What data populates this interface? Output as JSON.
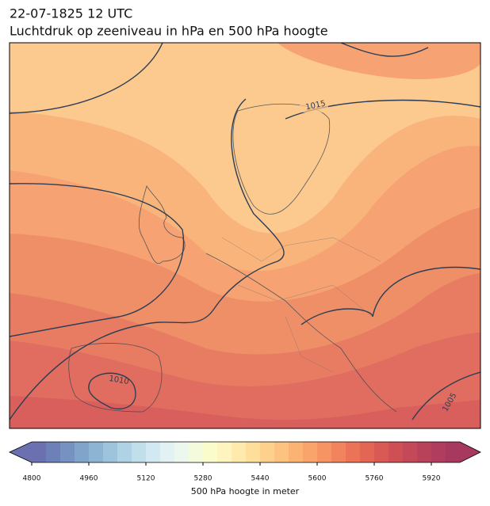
{
  "header": {
    "title_line1": "22-07-1825 12 UTC",
    "title_line2": "Luchtdruk op zeeniveau in hPa en 500 hPa hoogte"
  },
  "map": {
    "contour_labels": [
      "1015",
      "1010",
      "1005"
    ]
  },
  "colorbar": {
    "label": "500 hPa hoogte in meter",
    "lim": [
      4800,
      6000
    ],
    "ticks": [
      4800,
      4960,
      5120,
      5280,
      5440,
      5600,
      5760,
      5920
    ],
    "colors": [
      "#6a70b0",
      "#6d80b8",
      "#7592c1",
      "#80a4ca",
      "#8db5d3",
      "#9dc4dc",
      "#afd3e4",
      "#c1dfeb",
      "#d2e9f1",
      "#e1f1f4",
      "#ecf7ed",
      "#f4fadc",
      "#fafccc",
      "#fdf4bf",
      "#feeaad",
      "#fede9b",
      "#fdd08b",
      "#fcc27f",
      "#fbb374",
      "#f9a46b",
      "#f69463",
      "#f1845d",
      "#eb7458",
      "#e36655",
      "#d95a54",
      "#ce5055",
      "#c34858",
      "#b9425b",
      "#b03d5d",
      "#a8395e"
    ]
  }
}
